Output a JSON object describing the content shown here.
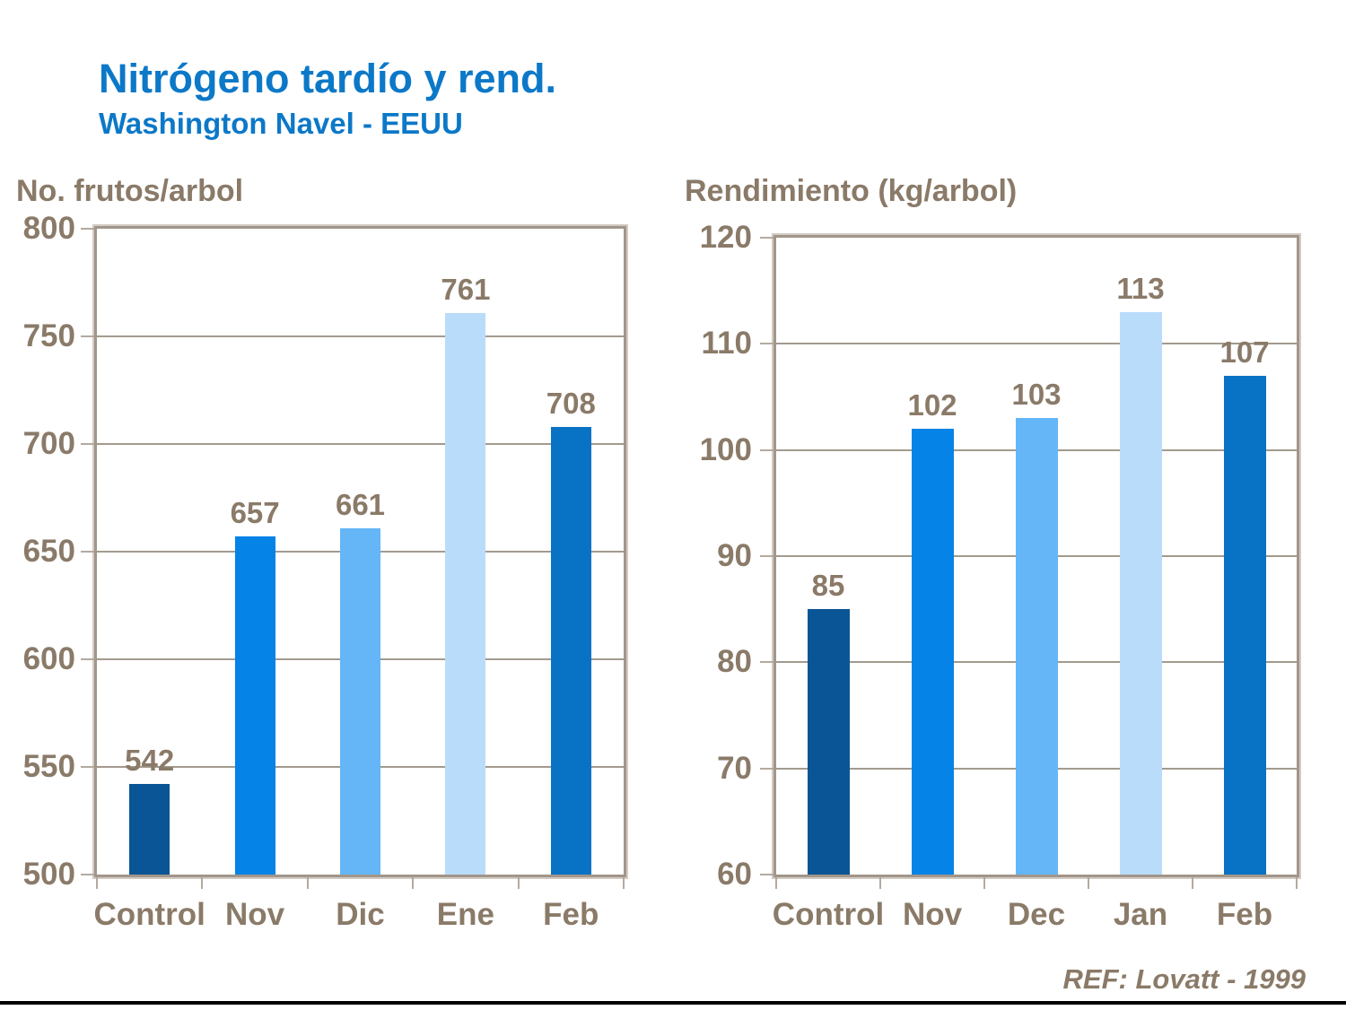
{
  "header": {
    "title": "Nitrógeno tardío y rend.",
    "subtitle": "Washington Navel - EEUU"
  },
  "footer": {
    "reference": "REF: Lovatt - 1999"
  },
  "colors": {
    "title_blue": "#0c78c8",
    "chart_text": "#8a7a68",
    "frame": "#a2968a",
    "frame_shadow": "#d2cbc3",
    "gridline": "#a39a8e",
    "tick": "#b3aaa0",
    "bars": [
      "#0a5596",
      "#0583e6",
      "#64b6f7",
      "#b9dcfa",
      "#0872c4"
    ]
  },
  "chart_data": [
    {
      "type": "bar",
      "title": "No. frutos/arbol",
      "categories": [
        "Control",
        "Nov",
        "Dic",
        "Ene",
        "Feb"
      ],
      "values": [
        542,
        657,
        661,
        761,
        708
      ],
      "xlabel": "",
      "ylabel": "No. frutos/arbol",
      "ylim": [
        500,
        800
      ],
      "ytick_step": 50,
      "grid": true,
      "legend": "none",
      "value_labels": [
        542,
        657,
        661,
        761,
        708
      ]
    },
    {
      "type": "bar",
      "title": "Rendimiento (kg/arbol)",
      "categories": [
        "Control",
        "Nov",
        "Dec",
        "Jan",
        "Feb"
      ],
      "values": [
        85,
        102,
        103,
        113,
        107
      ],
      "xlabel": "",
      "ylabel": "Rendimiento (kg/arbol)",
      "ylim": [
        60,
        120
      ],
      "ytick_step": 10,
      "grid": true,
      "legend": "none",
      "value_labels": [
        85,
        102,
        103,
        113,
        107
      ]
    }
  ]
}
